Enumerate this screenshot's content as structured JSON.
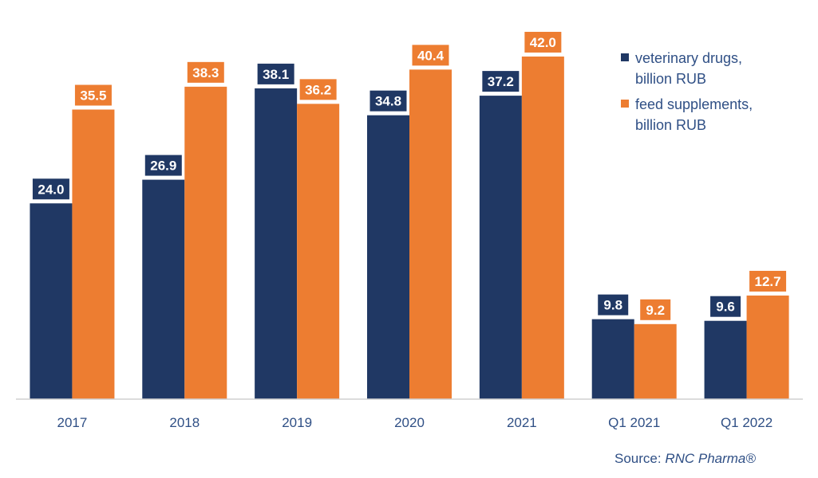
{
  "chart_data": {
    "type": "bar",
    "categories": [
      "2017",
      "2018",
      "2019",
      "2020",
      "2021",
      "Q1 2021",
      "Q1 2022"
    ],
    "series": [
      {
        "name": "veterinary drugs, billion RUB",
        "values": [
          24.0,
          26.9,
          38.1,
          34.8,
          37.2,
          9.8,
          9.6
        ],
        "color": "#203864"
      },
      {
        "name": "feed supplements, billion RUB",
        "values": [
          35.5,
          38.3,
          36.2,
          40.4,
          42.0,
          9.2,
          12.7
        ],
        "color": "#ED7D31"
      }
    ],
    "legend_lines": [
      [
        "veterinary drugs,",
        "billion RUB"
      ],
      [
        "feed supplements,",
        "billion RUB"
      ]
    ],
    "title": "",
    "xlabel": "",
    "ylabel": "",
    "ylim": [
      0,
      46
    ],
    "grid": false,
    "legend": "top-right",
    "data_labels": true
  },
  "source": {
    "prefix": "Source: ",
    "publisher": "RNC Pharma®"
  }
}
